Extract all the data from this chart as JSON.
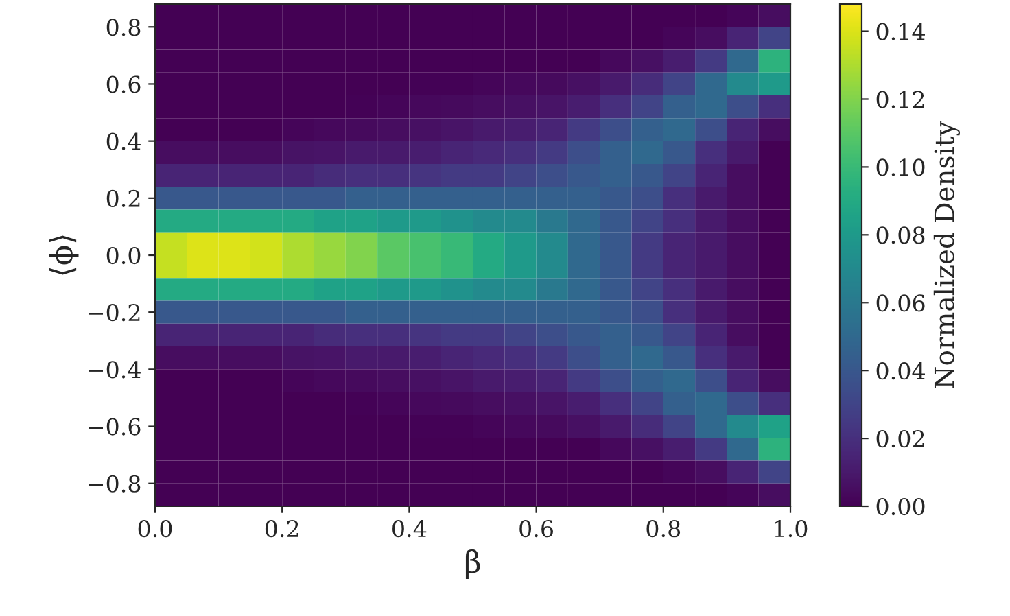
{
  "chart_data": {
    "type": "heatmap",
    "xlabel": "β",
    "ylabel": "⟨ϕ⟩",
    "clabel": "Normalized Density",
    "x": [
      0.025,
      0.075,
      0.125,
      0.175,
      0.225,
      0.275,
      0.325,
      0.375,
      0.425,
      0.475,
      0.525,
      0.575,
      0.625,
      0.675,
      0.725,
      0.775,
      0.825,
      0.875,
      0.925,
      0.975
    ],
    "y": [
      0.84,
      0.76,
      0.68,
      0.6,
      0.52,
      0.44,
      0.36,
      0.28,
      0.2,
      0.12,
      0.04,
      -0.04,
      -0.12,
      -0.2,
      -0.28,
      -0.36,
      -0.44,
      -0.52,
      -0.6,
      -0.68,
      -0.76,
      -0.84
    ],
    "cells": [
      [
        0,
        0,
        0,
        0,
        0,
        0,
        0,
        0,
        0,
        0,
        0,
        0,
        0,
        0,
        0,
        0,
        0,
        0,
        0.002,
        0.005
      ],
      [
        0,
        0,
        0,
        0,
        0,
        0,
        0,
        0,
        0,
        0,
        0,
        0,
        0,
        0,
        0,
        0,
        0.002,
        0.005,
        0.015,
        0.03
      ],
      [
        0,
        0,
        0,
        0,
        0,
        0,
        0,
        0,
        0,
        0,
        0,
        0,
        0,
        0,
        0.003,
        0.006,
        0.012,
        0.025,
        0.05,
        0.095
      ],
      [
        0,
        0,
        0,
        0,
        0,
        0,
        0,
        0,
        0.001,
        0.001,
        0.002,
        0.003,
        0.004,
        0.006,
        0.01,
        0.018,
        0.03,
        0.05,
        0.07,
        0.08
      ],
      [
        0,
        0,
        0,
        0,
        0,
        0,
        0.001,
        0.002,
        0.003,
        0.004,
        0.005,
        0.006,
        0.008,
        0.012,
        0.02,
        0.03,
        0.045,
        0.05,
        0.035,
        0.02
      ],
      [
        0,
        0,
        0,
        0,
        0.002,
        0.003,
        0.004,
        0.005,
        0.006,
        0.008,
        0.01,
        0.012,
        0.015,
        0.025,
        0.035,
        0.045,
        0.05,
        0.035,
        0.015,
        0.005
      ],
      [
        0.005,
        0.005,
        0.005,
        0.005,
        0.007,
        0.008,
        0.01,
        0.01,
        0.012,
        0.015,
        0.017,
        0.02,
        0.025,
        0.035,
        0.045,
        0.05,
        0.04,
        0.02,
        0.01,
        0
      ],
      [
        0.015,
        0.015,
        0.015,
        0.015,
        0.015,
        0.018,
        0.02,
        0.02,
        0.022,
        0.025,
        0.025,
        0.03,
        0.035,
        0.04,
        0.045,
        0.04,
        0.03,
        0.015,
        0.005,
        0
      ],
      [
        0.04,
        0.04,
        0.04,
        0.04,
        0.04,
        0.04,
        0.045,
        0.045,
        0.045,
        0.045,
        0.045,
        0.045,
        0.045,
        0.045,
        0.04,
        0.035,
        0.02,
        0.01,
        0.005,
        0
      ],
      [
        0.09,
        0.09,
        0.09,
        0.09,
        0.09,
        0.085,
        0.085,
        0.08,
        0.08,
        0.075,
        0.07,
        0.07,
        0.06,
        0.05,
        0.04,
        0.03,
        0.02,
        0.01,
        0.005,
        0
      ],
      [
        0.135,
        0.14,
        0.14,
        0.138,
        0.13,
        0.125,
        0.12,
        0.11,
        0.105,
        0.1,
        0.09,
        0.08,
        0.07,
        0.05,
        0.04,
        0.025,
        0.015,
        0.01,
        0.005,
        0
      ],
      [
        0.135,
        0.14,
        0.14,
        0.138,
        0.13,
        0.125,
        0.12,
        0.11,
        0.105,
        0.1,
        0.09,
        0.08,
        0.07,
        0.05,
        0.04,
        0.025,
        0.015,
        0.01,
        0.005,
        0
      ],
      [
        0.09,
        0.09,
        0.09,
        0.09,
        0.09,
        0.085,
        0.085,
        0.08,
        0.08,
        0.075,
        0.07,
        0.07,
        0.06,
        0.05,
        0.04,
        0.03,
        0.02,
        0.01,
        0.005,
        0
      ],
      [
        0.04,
        0.04,
        0.04,
        0.04,
        0.04,
        0.04,
        0.045,
        0.045,
        0.045,
        0.045,
        0.045,
        0.045,
        0.045,
        0.045,
        0.04,
        0.035,
        0.02,
        0.01,
        0.005,
        0
      ],
      [
        0.015,
        0.015,
        0.015,
        0.015,
        0.015,
        0.018,
        0.02,
        0.02,
        0.022,
        0.025,
        0.025,
        0.03,
        0.035,
        0.04,
        0.045,
        0.04,
        0.03,
        0.015,
        0.005,
        0
      ],
      [
        0.005,
        0.005,
        0.005,
        0.005,
        0.007,
        0.008,
        0.01,
        0.01,
        0.012,
        0.015,
        0.017,
        0.02,
        0.025,
        0.035,
        0.045,
        0.05,
        0.04,
        0.02,
        0.01,
        0
      ],
      [
        0,
        0,
        0,
        0,
        0.002,
        0.003,
        0.004,
        0.005,
        0.006,
        0.008,
        0.01,
        0.012,
        0.015,
        0.025,
        0.035,
        0.045,
        0.05,
        0.035,
        0.015,
        0.005
      ],
      [
        0,
        0,
        0,
        0,
        0,
        0,
        0.001,
        0.002,
        0.003,
        0.004,
        0.005,
        0.006,
        0.008,
        0.012,
        0.02,
        0.03,
        0.045,
        0.05,
        0.035,
        0.02
      ],
      [
        0,
        0,
        0,
        0,
        0,
        0,
        0,
        0,
        0.001,
        0.001,
        0.002,
        0.003,
        0.004,
        0.006,
        0.01,
        0.018,
        0.03,
        0.05,
        0.07,
        0.085
      ],
      [
        0,
        0,
        0,
        0,
        0,
        0,
        0,
        0,
        0,
        0,
        0,
        0,
        0,
        0,
        0.003,
        0.006,
        0.012,
        0.025,
        0.05,
        0.095
      ],
      [
        0,
        0,
        0,
        0,
        0,
        0,
        0,
        0,
        0,
        0,
        0,
        0,
        0,
        0,
        0,
        0,
        0.002,
        0.005,
        0.015,
        0.03
      ],
      [
        0,
        0,
        0,
        0,
        0,
        0,
        0,
        0,
        0,
        0,
        0,
        0,
        0,
        0,
        0,
        0,
        0,
        0,
        0.002,
        0.005
      ]
    ],
    "xlim": [
      0,
      1
    ],
    "ylim": [
      -0.88,
      0.88
    ],
    "xticks": [
      {
        "value": 0,
        "label": "0.0"
      },
      {
        "value": 0.2,
        "label": "0.2"
      },
      {
        "value": 0.4,
        "label": "0.4"
      },
      {
        "value": 0.6,
        "label": "0.6"
      },
      {
        "value": 0.8,
        "label": "0.8"
      },
      {
        "value": 1,
        "label": "1.0"
      }
    ],
    "yticks": [
      {
        "value": -0.8,
        "label": "−0.8"
      },
      {
        "value": -0.6,
        "label": "−0.6"
      },
      {
        "value": -0.4,
        "label": "−0.4"
      },
      {
        "value": -0.2,
        "label": "−0.2"
      },
      {
        "value": 0,
        "label": "0.0"
      },
      {
        "value": 0.2,
        "label": "0.2"
      },
      {
        "value": 0.4,
        "label": "0.4"
      },
      {
        "value": 0.6,
        "label": "0.6"
      },
      {
        "value": 0.8,
        "label": "0.8"
      }
    ],
    "clim": [
      0,
      0.148
    ],
    "cticks": [
      {
        "value": 0,
        "label": "0.00"
      },
      {
        "value": 0.02,
        "label": "0.02"
      },
      {
        "value": 0.04,
        "label": "0.04"
      },
      {
        "value": 0.06,
        "label": "0.06"
      },
      {
        "value": 0.08,
        "label": "0.08"
      },
      {
        "value": 0.1,
        "label": "0.10"
      },
      {
        "value": 0.12,
        "label": "0.12"
      },
      {
        "value": 0.14,
        "label": "0.14"
      }
    ]
  }
}
